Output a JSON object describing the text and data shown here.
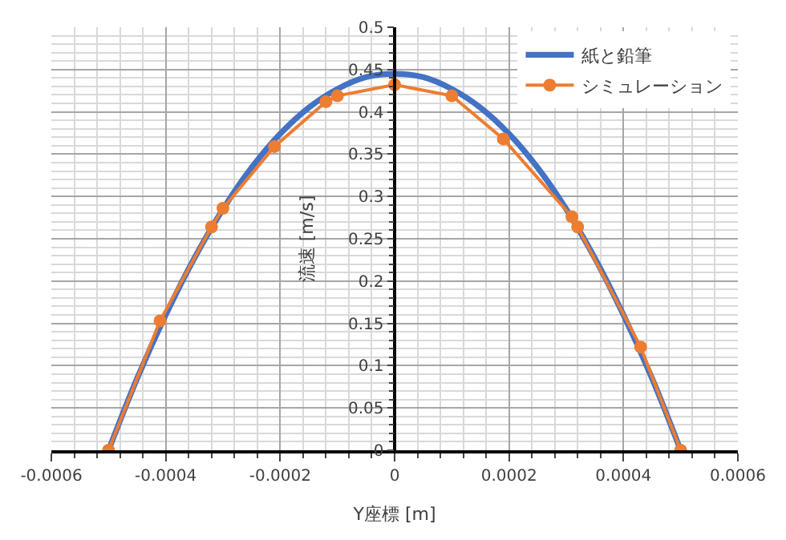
{
  "chart_data": {
    "type": "line",
    "xlabel": "Y座標 [m]",
    "ylabel": "流速 [m/s]",
    "xlim": [
      -0.0006,
      0.0006
    ],
    "xticks": [
      -0.0006,
      -0.0004,
      -0.0002,
      0,
      0.0002,
      0.0004,
      0.0006
    ],
    "ylim": [
      0,
      0.5
    ],
    "yticks": [
      0,
      0.05,
      0.1,
      0.15,
      0.2,
      0.25,
      0.3,
      0.35,
      0.4,
      0.45,
      0.5
    ],
    "grid": true,
    "legend": "top right",
    "series": [
      {
        "name": "紙と鉛筆",
        "color": "#4472c4",
        "marker": "none",
        "x": [
          -0.0005,
          -0.00045,
          -0.0004,
          -0.00035,
          -0.0003,
          -0.00025,
          -0.0002,
          -0.00015,
          -0.0001,
          -5e-05,
          0,
          5e-05,
          0.0001,
          0.00015,
          0.0002,
          0.00025,
          0.0003,
          0.00035,
          0.0004,
          0.00045,
          0.0005
        ],
        "values": [
          0,
          0.085,
          0.16,
          0.227,
          0.285,
          0.334,
          0.374,
          0.405,
          0.427,
          0.441,
          0.445,
          0.441,
          0.427,
          0.405,
          0.374,
          0.334,
          0.285,
          0.227,
          0.16,
          0.085,
          0
        ]
      },
      {
        "name": "シミュレーション",
        "color": "#ed7d31",
        "marker": "circle",
        "x": [
          -0.0005,
          -0.00041,
          -0.00032,
          -0.0003,
          -0.00021,
          -0.00012,
          -0.0001,
          0,
          0.0001,
          0.00019,
          0.00031,
          0.00032,
          0.00043,
          0.0005
        ],
        "values": [
          0,
          0.153,
          0.264,
          0.286,
          0.359,
          0.412,
          0.419,
          0.432,
          0.419,
          0.368,
          0.276,
          0.264,
          0.122,
          0
        ]
      }
    ]
  }
}
